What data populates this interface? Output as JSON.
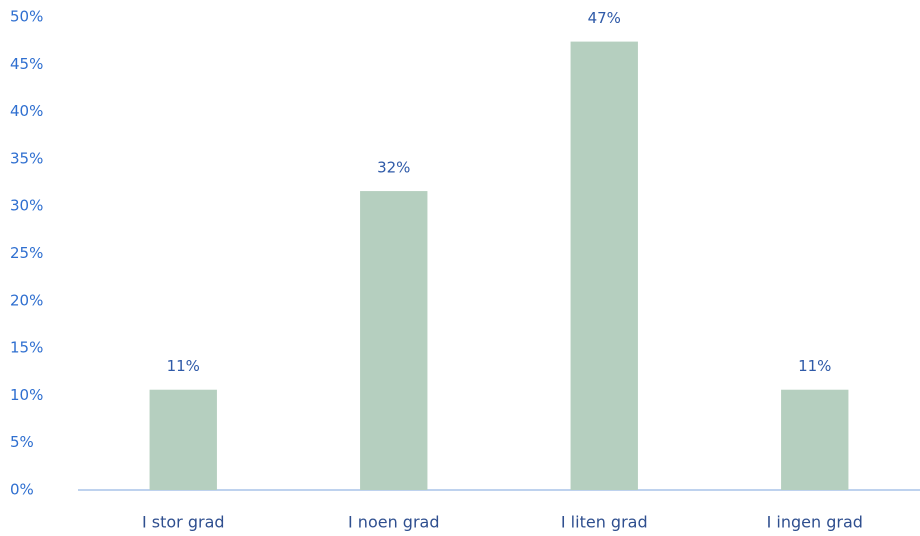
{
  "chart_data": {
    "type": "bar",
    "categories": [
      "I stor grad",
      "I noen grad",
      "I liten grad",
      "I ingen grad"
    ],
    "values": [
      10.6,
      31.6,
      47.4,
      10.6
    ],
    "value_labels": [
      "11%",
      "32%",
      "47%",
      "11%"
    ],
    "color": "#b5cfbf",
    "ylim": [
      0,
      50
    ],
    "yticks": [
      {
        "value": 0,
        "label": "0%"
      },
      {
        "value": 5,
        "label": "5%"
      },
      {
        "value": 10,
        "label": "10%"
      },
      {
        "value": 15,
        "label": "15%"
      },
      {
        "value": 20,
        "label": "20%"
      },
      {
        "value": 25,
        "label": "25%"
      },
      {
        "value": 30,
        "label": "30%"
      },
      {
        "value": 35,
        "label": "35%"
      },
      {
        "value": 40,
        "label": "40%"
      },
      {
        "value": 45,
        "label": "45%"
      },
      {
        "value": 50,
        "label": "50%"
      }
    ],
    "grid": false
  }
}
